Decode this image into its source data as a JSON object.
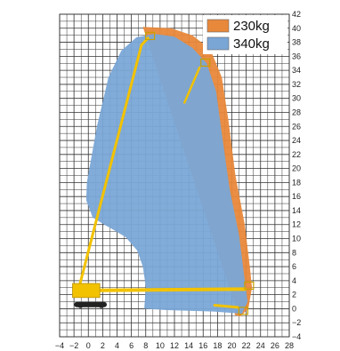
{
  "chart_data": {
    "type": "area",
    "title": "",
    "xlabel": "",
    "ylabel": "",
    "xlim": [
      -4,
      28
    ],
    "ylim": [
      -4,
      42
    ],
    "x_ticks": [
      -4,
      -2,
      0,
      2,
      4,
      6,
      8,
      10,
      12,
      14,
      16,
      18,
      20,
      22,
      24,
      26,
      28
    ],
    "y_ticks": [
      -4,
      -2,
      0,
      2,
      4,
      6,
      8,
      10,
      12,
      14,
      16,
      18,
      20,
      22,
      24,
      26,
      28,
      30,
      32,
      34,
      36,
      38,
      40,
      42
    ],
    "grid": true,
    "legend_position": "top-right",
    "series": [
      {
        "name": "230kg",
        "color": "#e8883a",
        "outline": [
          [
            7.6,
            40.2
          ],
          [
            11.5,
            40
          ],
          [
            14.5,
            39
          ],
          [
            17,
            37
          ],
          [
            18.6,
            33
          ],
          [
            19.5,
            27
          ],
          [
            20.5,
            19
          ],
          [
            21.8,
            12
          ],
          [
            22.5,
            6
          ],
          [
            22.8,
            3
          ],
          [
            22.3,
            0
          ],
          [
            21.2,
            -1.1
          ],
          [
            20.4,
            -0.9
          ],
          [
            20.5,
            0.5
          ]
        ]
      },
      {
        "name": "340kg",
        "color": "#7aa6d6",
        "outline": [
          [
            -0.2,
            18
          ],
          [
            1.2,
            26
          ],
          [
            2.8,
            33
          ],
          [
            4.6,
            36.8
          ],
          [
            6.7,
            38.7
          ],
          [
            9.2,
            39.2
          ],
          [
            12,
            38.8
          ],
          [
            14.5,
            37.2
          ],
          [
            16.5,
            35
          ],
          [
            17.8,
            31
          ],
          [
            18.6,
            25
          ],
          [
            19.7,
            17
          ],
          [
            21,
            10.5
          ],
          [
            21.8,
            4
          ],
          [
            22.2,
            1
          ],
          [
            21.4,
            -0.7
          ],
          [
            17.5,
            -0.4
          ],
          [
            11,
            -0.2
          ],
          [
            7.8,
            0
          ],
          [
            8,
            3.2
          ],
          [
            7.6,
            6
          ],
          [
            6.8,
            8.3
          ],
          [
            5.2,
            10.2
          ],
          [
            3.6,
            11.2
          ],
          [
            2.2,
            12
          ],
          [
            0.6,
            13
          ],
          [
            -0.3,
            15.5
          ]
        ]
      }
    ],
    "machine": {
      "main_boom": [
        [
          -1.3,
          3
        ],
        [
          7.4,
          37.6
        ]
      ],
      "jib": [
        [
          7.4,
          37.6
        ],
        [
          8.3,
          38.6
        ]
      ],
      "basket_top": [
        8.6,
        38.9
      ],
      "fly_arm": [
        [
          13.4,
          29.4
        ],
        [
          15.5,
          34.4
        ]
      ],
      "basket_mid": [
        16.3,
        35.1
      ],
      "telescopic_arm": [
        [
          -1.6,
          2.6
        ],
        [
          21.8,
          2.8
        ]
      ],
      "basket_right": [
        22.4,
        3.3
      ],
      "lower_arm": [
        [
          17.6,
          0.5
        ],
        [
          20.8,
          0.2
        ]
      ],
      "basket_low": [
        21.6,
        -0.3
      ],
      "chassis": [
        [
          -1.6,
          0.6
        ],
        [
          2.2,
          0.6
        ]
      ]
    }
  }
}
